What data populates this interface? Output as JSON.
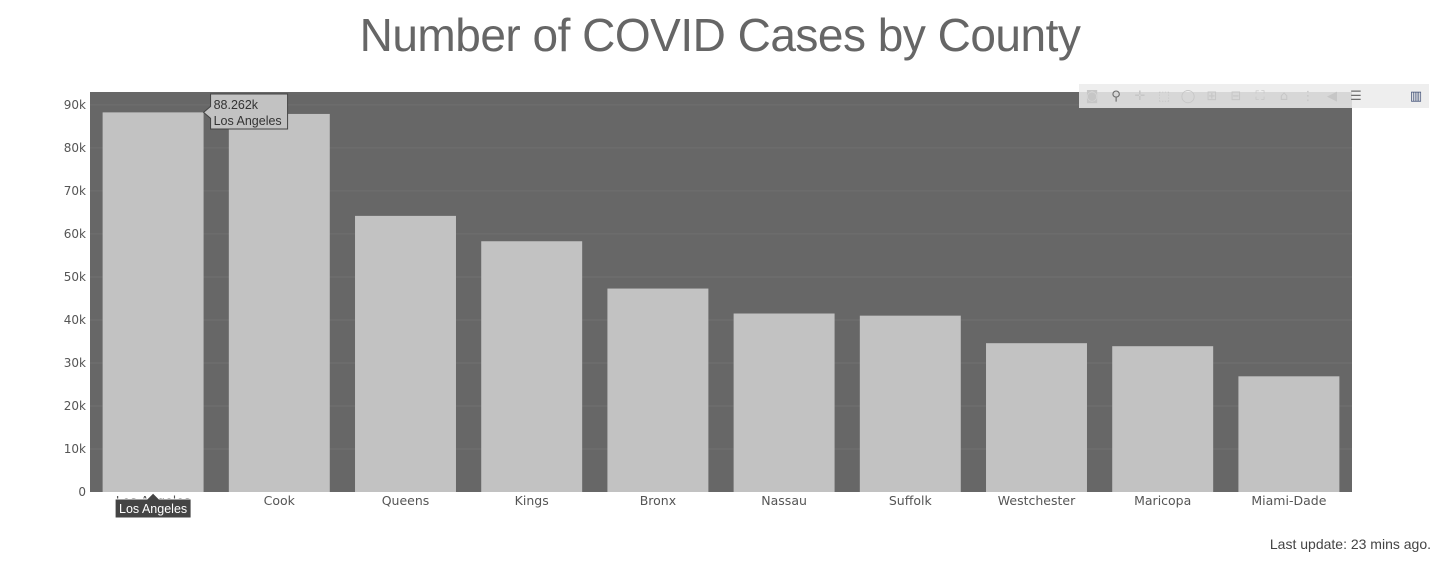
{
  "title": "Number of COVID Cases by County",
  "last_update": "Last update: 23 mins ago.",
  "chart_data": {
    "type": "bar",
    "categories": [
      "Los Angeles",
      "Cook",
      "Queens",
      "Kings",
      "Bronx",
      "Nassau",
      "Suffolk",
      "Westchester",
      "Maricopa",
      "Miami-Dade"
    ],
    "values": [
      88262,
      87900,
      64200,
      58300,
      47300,
      41500,
      41000,
      34600,
      33900,
      26900
    ],
    "ylim": [
      0,
      93000
    ],
    "yticks": [
      0,
      10000,
      20000,
      30000,
      40000,
      50000,
      60000,
      70000,
      80000,
      90000
    ],
    "ytick_labels": [
      "0",
      "10k",
      "20k",
      "30k",
      "40k",
      "50k",
      "60k",
      "70k",
      "80k",
      "90k"
    ],
    "xlabel": "",
    "ylabel": "",
    "grid": true,
    "colors": {
      "plot_bg": "#676767",
      "bar": "#c2c2c2",
      "grid": "#707070"
    },
    "hover": {
      "category": "Los Angeles",
      "value_text": "88.262k",
      "name_text": "Los Angeles",
      "axis_text": "Los Angeles"
    }
  },
  "modebar": {
    "buttons": [
      {
        "name": "camera-icon",
        "glyph": "◙",
        "active": false
      },
      {
        "name": "zoom-icon",
        "glyph": "⚲",
        "active": true
      },
      {
        "name": "pan-icon",
        "glyph": "✛",
        "active": false
      },
      {
        "name": "box-select-icon",
        "glyph": "⬚",
        "active": false
      },
      {
        "name": "lasso-select-icon",
        "glyph": "◯",
        "active": false
      },
      {
        "name": "zoom-in-icon",
        "glyph": "⊞",
        "active": false
      },
      {
        "name": "zoom-out-icon",
        "glyph": "⊟",
        "active": false
      },
      {
        "name": "autoscale-icon",
        "glyph": "⛶",
        "active": false
      },
      {
        "name": "reset-axes-icon",
        "glyph": "⌂",
        "active": false
      },
      {
        "name": "spike-lines-icon",
        "glyph": "⋮",
        "active": false
      },
      {
        "name": "hover-closest-icon",
        "glyph": "◀",
        "active": false
      },
      {
        "name": "hover-compare-icon",
        "glyph": "☰",
        "active": true
      },
      {
        "name": "plotly-logo-icon",
        "glyph": "▥",
        "active": true
      }
    ]
  }
}
